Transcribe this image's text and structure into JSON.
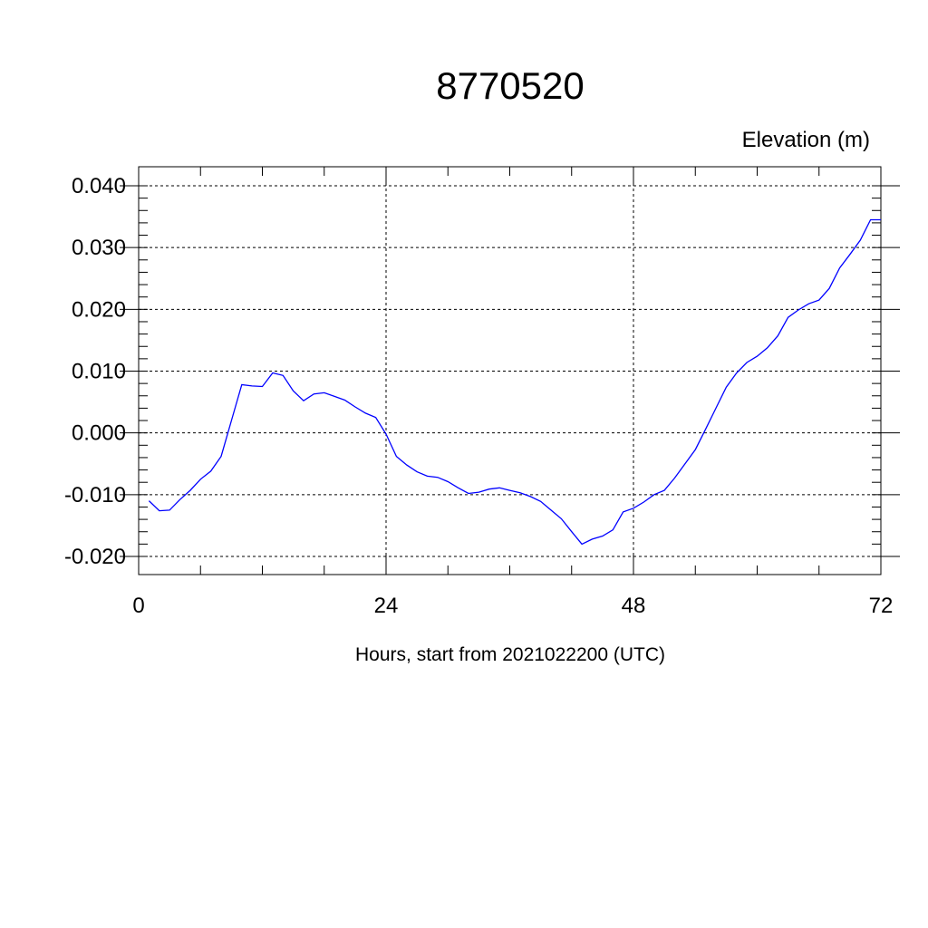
{
  "chart_data": {
    "type": "line",
    "title": "8770520",
    "ylabel": "Elevation (m)",
    "xlabel": "Hours, start from 2021022200 (UTC)",
    "xlim": [
      0,
      72
    ],
    "ylim": [
      -0.02,
      0.04
    ],
    "x_ticks": [
      0,
      24,
      48,
      72
    ],
    "x_tick_labels": [
      "0",
      "24",
      "48",
      "72"
    ],
    "y_ticks": [
      -0.02,
      -0.01,
      0.0,
      0.01,
      0.02,
      0.03,
      0.04
    ],
    "y_tick_labels": [
      "-0.020",
      "-0.010",
      "0.000",
      "0.010",
      "0.020",
      "0.030",
      "0.040"
    ],
    "grid": true,
    "line_color": "#0000ff",
    "series": [
      {
        "x": [
          1,
          2,
          3,
          4,
          5,
          6,
          7,
          8,
          9,
          10,
          11,
          12,
          13,
          14,
          15,
          16,
          17,
          18,
          19,
          20,
          21,
          22,
          23,
          24,
          25,
          26,
          27,
          28,
          29,
          30,
          31,
          32,
          33,
          34,
          35,
          36,
          37,
          38,
          39,
          40,
          41,
          42,
          43,
          44,
          45,
          46,
          47,
          48,
          49,
          50,
          51,
          52,
          53,
          54,
          55,
          56,
          57,
          58,
          59,
          60,
          61,
          62,
          63,
          64,
          65,
          66,
          67,
          68,
          69,
          70,
          71,
          72
        ],
        "values": [
          -0.011,
          -0.0126,
          -0.0125,
          -0.0108,
          -0.0093,
          -0.0075,
          -0.0062,
          -0.0038,
          0.002,
          0.0078,
          0.0076,
          0.0075,
          0.0097,
          0.0093,
          0.0068,
          0.0052,
          0.0063,
          0.0065,
          0.0059,
          0.0053,
          0.0042,
          0.0032,
          0.0025,
          -0.0002,
          -0.0038,
          -0.0052,
          -0.0063,
          -0.007,
          -0.0072,
          -0.0079,
          -0.0089,
          -0.0098,
          -0.0096,
          -0.0091,
          -0.0089,
          -0.0093,
          -0.0097,
          -0.0103,
          -0.0111,
          -0.0125,
          -0.0139,
          -0.016,
          -0.018,
          -0.0172,
          -0.0167,
          -0.0157,
          -0.0128,
          -0.0122,
          -0.0112,
          -0.01,
          -0.0093,
          -0.0073,
          -0.005,
          -0.0027,
          0.0006,
          0.004,
          0.0074,
          0.0097,
          0.0114,
          0.0124,
          0.0138,
          0.0157,
          0.0187,
          0.0199,
          0.0209,
          0.0215,
          0.0234,
          0.0267,
          0.0289,
          0.0312,
          0.0345,
          0.0345
        ]
      }
    ]
  }
}
